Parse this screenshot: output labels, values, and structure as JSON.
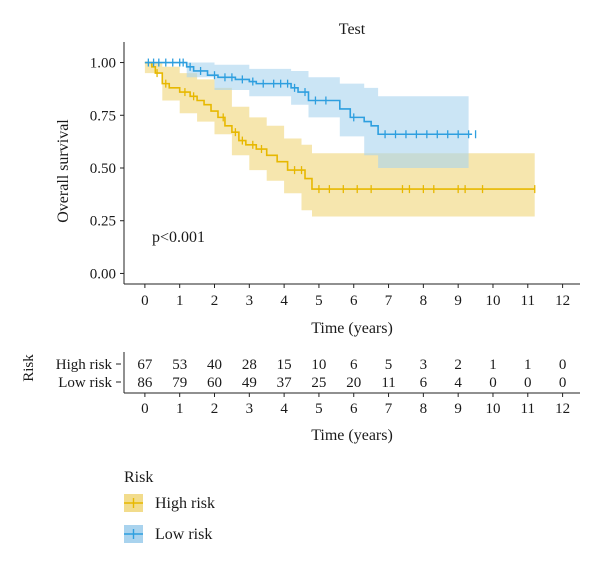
{
  "chart_data": {
    "type": "line",
    "title": "Test",
    "xlabel": "Time (years)",
    "ylabel": "Overall survival",
    "xlim": [
      -0.6,
      12.5
    ],
    "ylim": [
      -0.05,
      1.05
    ],
    "x_ticks": [
      "0",
      "1",
      "2",
      "3",
      "4",
      "5",
      "6",
      "7",
      "8",
      "9",
      "10",
      "11",
      "12"
    ],
    "y_ticks": [
      "0.00",
      "0.25",
      "0.50",
      "0.75",
      "1.00"
    ],
    "annotation": "p<0.001",
    "series": [
      {
        "name": "High risk",
        "color": "#E7B800",
        "fill": "#F2DC8C",
        "steps": [
          [
            0,
            1.0
          ],
          [
            0.2,
            0.98
          ],
          [
            0.3,
            0.95
          ],
          [
            0.5,
            0.9
          ],
          [
            0.7,
            0.88
          ],
          [
            1.0,
            0.86
          ],
          [
            1.3,
            0.84
          ],
          [
            1.5,
            0.82
          ],
          [
            1.7,
            0.8
          ],
          [
            1.9,
            0.77
          ],
          [
            2.1,
            0.74
          ],
          [
            2.3,
            0.7
          ],
          [
            2.5,
            0.67
          ],
          [
            2.7,
            0.63
          ],
          [
            2.9,
            0.61
          ],
          [
            3.2,
            0.59
          ],
          [
            3.5,
            0.56
          ],
          [
            3.8,
            0.53
          ],
          [
            4.1,
            0.49
          ],
          [
            4.6,
            0.45
          ],
          [
            4.8,
            0.4
          ]
        ],
        "end": 11.2,
        "lower": [
          [
            0,
            0.95
          ],
          [
            0.5,
            0.82
          ],
          [
            1.0,
            0.76
          ],
          [
            1.5,
            0.72
          ],
          [
            2.0,
            0.66
          ],
          [
            2.5,
            0.56
          ],
          [
            3.0,
            0.49
          ],
          [
            3.5,
            0.44
          ],
          [
            4.0,
            0.38
          ],
          [
            4.5,
            0.3
          ],
          [
            4.8,
            0.27
          ],
          [
            11.2,
            0.27
          ]
        ],
        "upper": [
          [
            0,
            1.0
          ],
          [
            0.5,
            0.98
          ],
          [
            1.0,
            0.95
          ],
          [
            1.5,
            0.92
          ],
          [
            2.0,
            0.88
          ],
          [
            2.5,
            0.79
          ],
          [
            3.0,
            0.74
          ],
          [
            3.5,
            0.7
          ],
          [
            4.0,
            0.64
          ],
          [
            4.5,
            0.61
          ],
          [
            4.8,
            0.57
          ],
          [
            11.2,
            0.57
          ]
        ],
        "censor_x": [
          0.35,
          0.6,
          1.15,
          1.4,
          2.25,
          2.6,
          2.8,
          3.1,
          3.35,
          4.3,
          4.5,
          5.0,
          5.3,
          5.7,
          6.1,
          6.5,
          7.4,
          7.6,
          8.0,
          8.3,
          9.0,
          9.2,
          9.7,
          11.2
        ]
      },
      {
        "name": "Low risk",
        "color": "#2E9FDF",
        "fill": "#A9D3EE",
        "steps": [
          [
            0,
            1.0
          ],
          [
            1.2,
            0.98
          ],
          [
            1.4,
            0.96
          ],
          [
            1.8,
            0.94
          ],
          [
            2.1,
            0.93
          ],
          [
            2.6,
            0.92
          ],
          [
            3.0,
            0.91
          ],
          [
            3.2,
            0.9
          ],
          [
            4.2,
            0.88
          ],
          [
            4.4,
            0.86
          ],
          [
            4.7,
            0.82
          ],
          [
            5.6,
            0.78
          ],
          [
            5.9,
            0.74
          ],
          [
            6.3,
            0.72
          ],
          [
            6.5,
            0.7
          ],
          [
            6.7,
            0.66
          ]
        ],
        "end": 9.4,
        "lower": [
          [
            0,
            1.0
          ],
          [
            1.2,
            0.93
          ],
          [
            2.0,
            0.87
          ],
          [
            3.0,
            0.84
          ],
          [
            4.2,
            0.8
          ],
          [
            4.7,
            0.74
          ],
          [
            5.6,
            0.65
          ],
          [
            6.3,
            0.56
          ],
          [
            6.7,
            0.5
          ],
          [
            9.3,
            0.5
          ]
        ],
        "upper": [
          [
            0,
            1.0
          ],
          [
            1.2,
            1.0
          ],
          [
            2.0,
            0.99
          ],
          [
            3.0,
            0.97
          ],
          [
            4.2,
            0.96
          ],
          [
            4.7,
            0.93
          ],
          [
            5.6,
            0.9
          ],
          [
            6.3,
            0.88
          ],
          [
            6.7,
            0.84
          ],
          [
            9.3,
            0.84
          ]
        ],
        "censor_x": [
          0.1,
          0.25,
          0.4,
          0.6,
          0.8,
          1.0,
          1.1,
          1.3,
          1.6,
          2.0,
          2.3,
          2.5,
          2.8,
          3.1,
          3.4,
          3.7,
          3.9,
          4.1,
          4.3,
          4.6,
          4.9,
          5.2,
          6.0,
          6.9,
          7.2,
          7.5,
          7.8,
          8.1,
          8.4,
          8.7,
          9.0,
          9.3,
          9.5
        ]
      }
    ]
  },
  "risk_table": {
    "axis_title": "Risk",
    "xlabel": "Time (years)",
    "x_ticks": [
      "0",
      "1",
      "2",
      "3",
      "4",
      "5",
      "6",
      "7",
      "8",
      "9",
      "10",
      "11",
      "12"
    ],
    "rows": [
      {
        "label": "High risk",
        "values": [
          "67",
          "53",
          "40",
          "28",
          "15",
          "10",
          "6",
          "5",
          "3",
          "2",
          "1",
          "1",
          "0"
        ]
      },
      {
        "label": "Low risk",
        "values": [
          "86",
          "79",
          "60",
          "49",
          "37",
          "25",
          "20",
          "11",
          "6",
          "4",
          "0",
          "0",
          "0"
        ]
      }
    ]
  },
  "legend": {
    "title": "Risk",
    "items": [
      {
        "label": "High risk",
        "color": "#E7B800",
        "fill": "#F2DC8C"
      },
      {
        "label": "Low risk",
        "color": "#2E9FDF",
        "fill": "#A9D3EE"
      }
    ]
  }
}
